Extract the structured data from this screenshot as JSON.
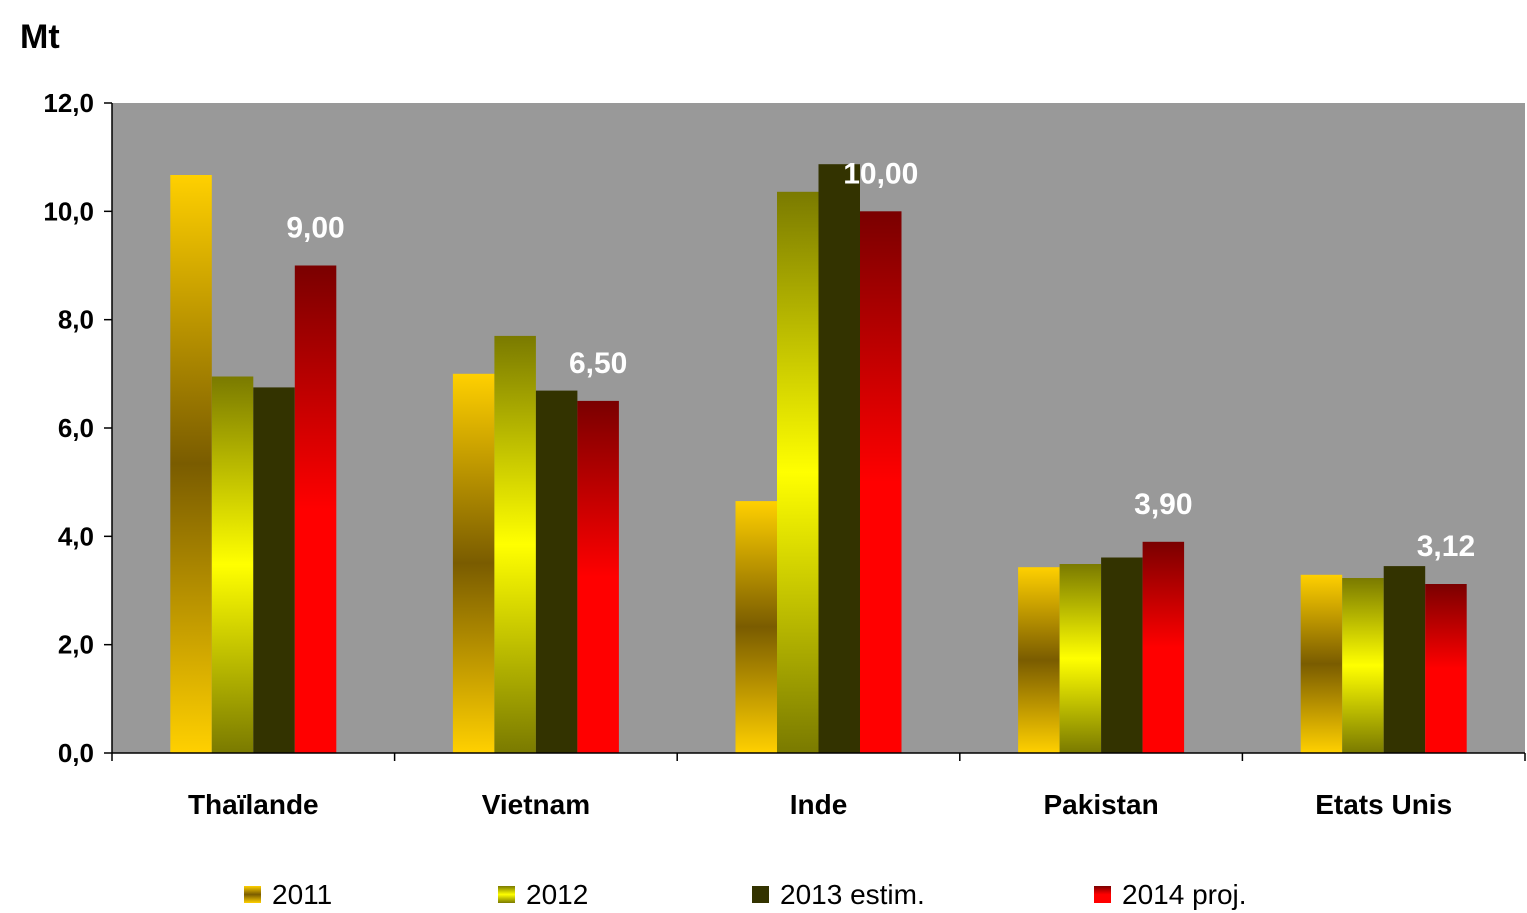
{
  "chart_data": {
    "type": "bar",
    "unit_label": "Mt",
    "categories": [
      "Thaïlande",
      "Vietnam",
      "Inde",
      "Pakistan",
      "Etats Unis"
    ],
    "series": [
      {
        "name": "2011",
        "values": [
          10.67,
          7.0,
          4.65,
          3.43,
          3.29
        ],
        "colors": [
          "#ffd000",
          "#7a5c00",
          "#ffd000"
        ]
      },
      {
        "name": "2012",
        "values": [
          6.95,
          7.7,
          10.36,
          3.49,
          3.23
        ],
        "colors": [
          "#7a7a00",
          "#ffff00",
          "#7a7a00"
        ]
      },
      {
        "name": "2013 estim.",
        "values": [
          6.75,
          6.69,
          10.87,
          3.61,
          3.45
        ],
        "colors": [
          "#333300",
          "#333300",
          "#333300"
        ]
      },
      {
        "name": "2014 proj.",
        "values": [
          9.0,
          6.5,
          10.0,
          3.9,
          3.12
        ],
        "colors": [
          "#7a0000",
          "#ff0000",
          "#ff0000"
        ]
      }
    ],
    "data_labels": {
      "series": "2014 proj.",
      "texts": [
        "9,00",
        "6,50",
        "10,00",
        "3,90",
        "3,12"
      ]
    },
    "ylim": [
      0,
      12
    ],
    "yticks": [
      "0,0",
      "2,0",
      "4,0",
      "6,0",
      "8,0",
      "10,0",
      "12,0"
    ],
    "plot_background": "#999999",
    "legend_position": "bottom"
  }
}
